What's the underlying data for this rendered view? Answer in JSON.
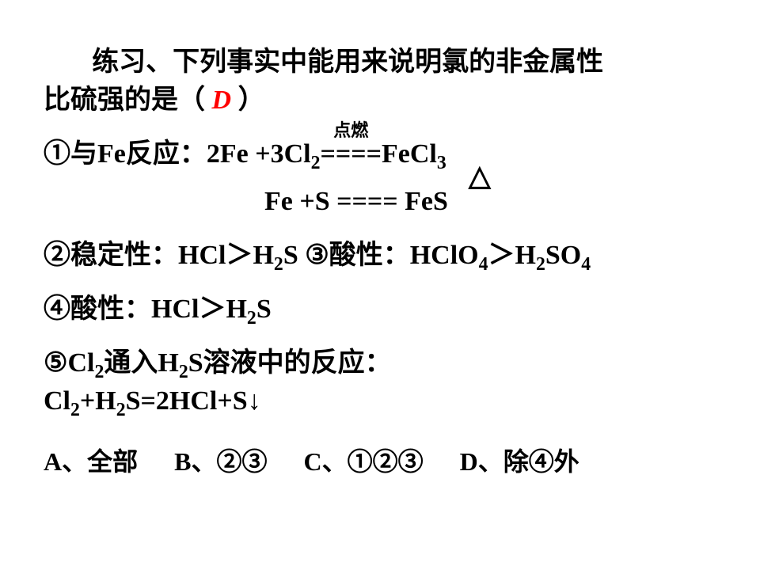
{
  "answer_color": "#ff0000",
  "question": {
    "line1": "练习、下列事实中能用来说明氯的非金属性",
    "line2_pre": "比硫强的是（ ",
    "answer": "D",
    "line2_post": "   ）"
  },
  "item1": {
    "label": "①与Fe反应：",
    "rxn1_lhs": "2Fe +3Cl",
    "rxn1_sub1": "2",
    "rxn1_eq": " ==== ",
    "rxn1_rhs": "FeCl",
    "rxn1_sub2": "3",
    "rxn1_cond": "点燃",
    "triangle": "△",
    "rxn2_lhs": "Fe +S ==== FeS"
  },
  "item2": {
    "a_label": "②稳定性：",
    "a_f1": "HCl",
    "a_gt": "＞",
    "a_f2": "H",
    "a_f2s": "2",
    "a_f3": "S",
    "b_label": "   ③酸性：",
    "b_f1": "HClO",
    "b_s1": "4",
    "b_gt": "＞",
    "b_f2": "H",
    "b_s2": "2",
    "b_f3": "SO",
    "b_s3": "4"
  },
  "item4": {
    "label": "④酸性：",
    "f1": "HCl",
    "gt": "＞",
    "f2": "H",
    "s2": "2",
    "f3": "S"
  },
  "item5": {
    "label_a": "⑤Cl",
    "sa": "2",
    "label_b": "通入H",
    "sb": "2",
    "label_c": "S溶液中的反应：",
    "rxn_a": "Cl",
    "rs1": "2",
    "rxn_b": "+H",
    "rs2": "2",
    "rxn_c": "S=2HCl+S↓"
  },
  "options": {
    "a": "A、全部",
    "b": "B、②③",
    "c": "C、①②③",
    "d": "D、除④外"
  }
}
